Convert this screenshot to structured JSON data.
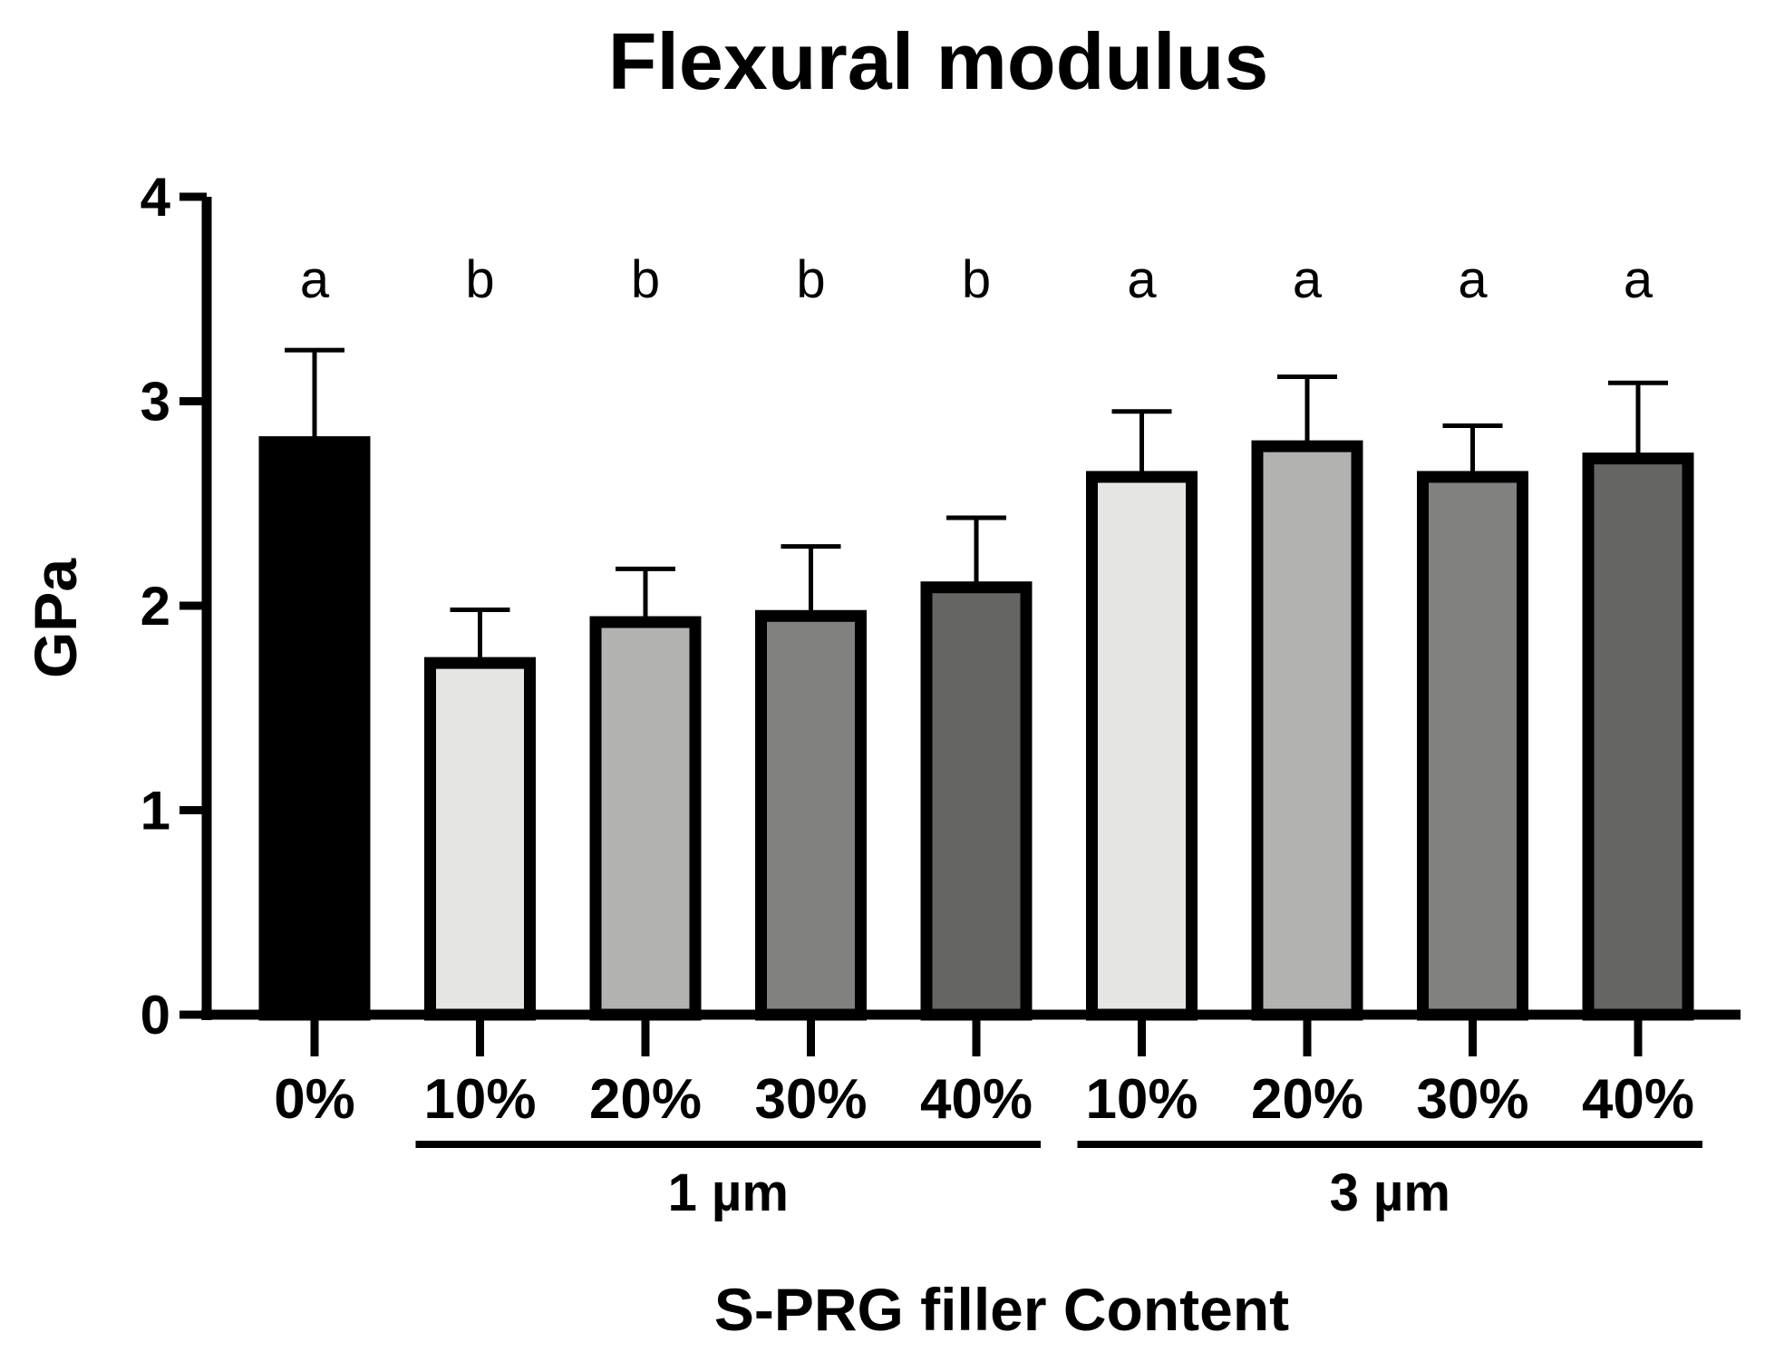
{
  "chart_data": {
    "type": "bar",
    "title": "Flexural modulus",
    "xlabel": "S-PRG filler Content",
    "ylabel": "GPa",
    "ylim": [
      0,
      4
    ],
    "yticks": [
      "0",
      "1",
      "2",
      "3",
      "4"
    ],
    "grid": false,
    "legend": "none",
    "categories": [
      "0%",
      "10%",
      "20%",
      "30%",
      "40%",
      "10%",
      "20%",
      "30%",
      "40%"
    ],
    "values": [
      2.8,
      1.72,
      1.92,
      1.95,
      2.09,
      2.63,
      2.78,
      2.63,
      2.72
    ],
    "errors": [
      0.45,
      0.26,
      0.26,
      0.34,
      0.34,
      0.32,
      0.34,
      0.25,
      0.37
    ],
    "significance": [
      "a",
      "b",
      "b",
      "b",
      "b",
      "a",
      "a",
      "a",
      "a"
    ],
    "fill_colors": [
      "#000000",
      "#e5e6e4",
      "#b2b3b1",
      "#818280",
      "#656664",
      "#e5e6e4",
      "#b2b3b1",
      "#818280",
      "#656664"
    ],
    "groups": [
      {
        "label": "1 µm",
        "categories": [
          1,
          2,
          3,
          4
        ]
      },
      {
        "label": "3 µm",
        "categories": [
          5,
          6,
          7,
          8
        ]
      }
    ]
  }
}
